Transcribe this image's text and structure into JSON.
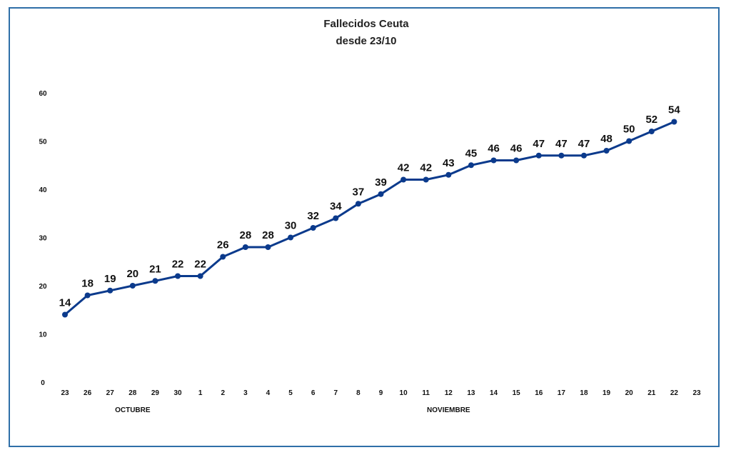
{
  "chart_data": {
    "type": "line",
    "title": "Fallecidos Ceuta",
    "subtitle": "desde 23/10",
    "categories": [
      "23",
      "26",
      "27",
      "28",
      "29",
      "30",
      "1",
      "2",
      "3",
      "4",
      "5",
      "6",
      "7",
      "8",
      "9",
      "10",
      "11",
      "12",
      "13",
      "14",
      "15",
      "16",
      "17",
      "18",
      "19",
      "20",
      "21",
      "22",
      "23"
    ],
    "series": [
      {
        "values": [
          14,
          18,
          19,
          20,
          21,
          22,
          22,
          26,
          28,
          28,
          30,
          32,
          34,
          37,
          39,
          42,
          42,
          43,
          45,
          46,
          46,
          47,
          47,
          47,
          48,
          50,
          52,
          54,
          null
        ]
      }
    ],
    "data_labels": [
      "14",
      "18",
      "19",
      "20",
      "21",
      "22",
      "22",
      "26",
      "28",
      "28",
      "30",
      "32",
      "34",
      "37",
      "39",
      "42",
      "42",
      "43",
      "45",
      "46",
      "46",
      "47",
      "47",
      "47",
      "48",
      "50",
      "52",
      "54",
      ""
    ],
    "month_labels": [
      {
        "text": "OCTUBRE",
        "category_index": 3
      },
      {
        "text": "NOVIEMBRE",
        "category_index": 17
      }
    ],
    "ylim": [
      0,
      60
    ],
    "yticks": [
      "0",
      "10",
      "20",
      "30",
      "40",
      "50",
      "60"
    ],
    "grid": false,
    "line_color": "#0b3a8c",
    "frame_color": "#2f6fa8"
  }
}
